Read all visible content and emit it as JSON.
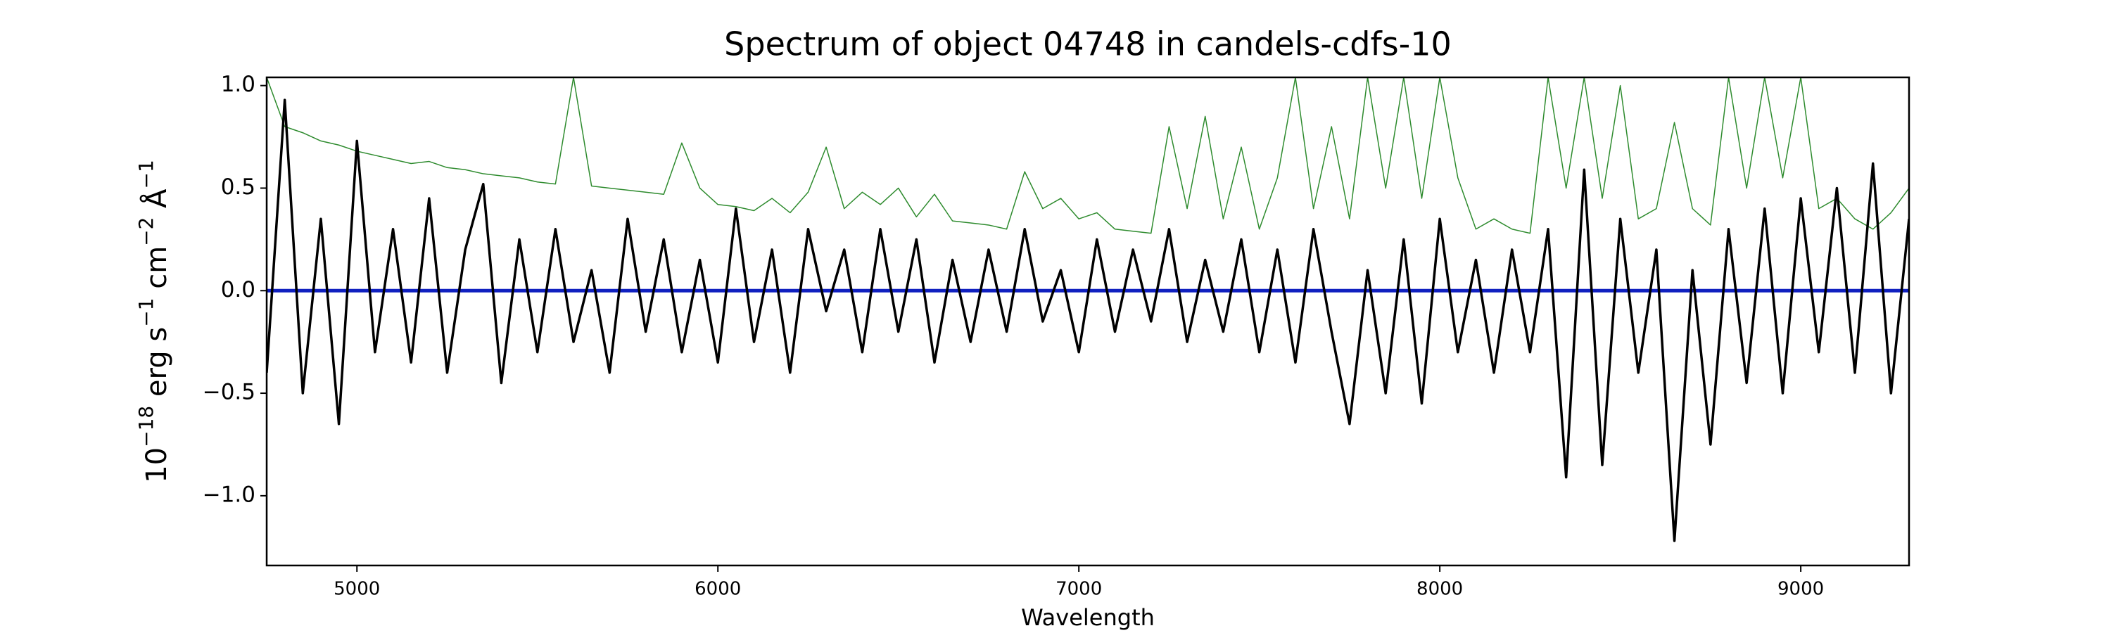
{
  "chart_data": {
    "type": "line",
    "title": "Spectrum of object 04748 in candels-cdfs-10",
    "xlabel": "Wavelength",
    "ylabel": [
      {
        "text": "10",
        "sup": "−18"
      },
      {
        "text": " erg s",
        "sup": "−1"
      },
      {
        "text": " cm",
        "sup": "−2"
      },
      {
        "text": " Å",
        "sup": "−1"
      }
    ],
    "xlim": [
      4750,
      9300
    ],
    "ylim": [
      -1.34,
      1.04
    ],
    "xticks": [
      5000,
      6000,
      7000,
      8000,
      9000
    ],
    "yticks": [
      {
        "value": -1.0,
        "label": "−1.0"
      },
      {
        "value": -0.5,
        "label": "−0.5"
      },
      {
        "value": 0.0,
        "label": "0.0"
      },
      {
        "value": 0.5,
        "label": "0.5"
      },
      {
        "value": 1.0,
        "label": "1.0"
      }
    ],
    "x": [
      4750,
      4800,
      4850,
      4900,
      4950,
      5000,
      5050,
      5100,
      5150,
      5200,
      5250,
      5300,
      5350,
      5400,
      5450,
      5500,
      5550,
      5600,
      5650,
      5700,
      5750,
      5800,
      5850,
      5900,
      5950,
      6000,
      6050,
      6100,
      6150,
      6200,
      6250,
      6300,
      6350,
      6400,
      6450,
      6500,
      6550,
      6600,
      6650,
      6700,
      6750,
      6800,
      6850,
      6900,
      6950,
      7000,
      7050,
      7100,
      7150,
      7200,
      7250,
      7300,
      7350,
      7400,
      7450,
      7500,
      7550,
      7600,
      7650,
      7700,
      7750,
      7800,
      7850,
      7900,
      7950,
      8000,
      8050,
      8100,
      8150,
      8200,
      8250,
      8300,
      8350,
      8400,
      8450,
      8500,
      8550,
      8600,
      8650,
      8700,
      8750,
      8800,
      8850,
      8900,
      8950,
      9000,
      9050,
      9100,
      9150,
      9200,
      9250,
      9300
    ],
    "series": [
      {
        "color": "#2e8b2e",
        "width": 1.5,
        "values": [
          1.04,
          0.8,
          0.77,
          0.73,
          0.71,
          0.68,
          0.66,
          0.64,
          0.62,
          0.63,
          0.6,
          0.59,
          0.57,
          0.56,
          0.55,
          0.53,
          0.52,
          1.04,
          0.51,
          0.5,
          0.49,
          0.48,
          0.47,
          0.72,
          0.5,
          0.42,
          0.41,
          0.39,
          0.45,
          0.38,
          0.48,
          0.7,
          0.4,
          0.48,
          0.42,
          0.5,
          0.36,
          0.47,
          0.34,
          0.33,
          0.32,
          0.3,
          0.58,
          0.4,
          0.45,
          0.35,
          0.38,
          0.3,
          0.29,
          0.28,
          0.8,
          0.4,
          0.85,
          0.35,
          0.7,
          0.3,
          0.55,
          1.04,
          0.4,
          0.8,
          0.35,
          1.04,
          0.5,
          1.04,
          0.45,
          1.04,
          0.55,
          0.3,
          0.35,
          0.3,
          0.28,
          1.04,
          0.5,
          1.04,
          0.45,
          1.0,
          0.35,
          0.4,
          0.82,
          0.4,
          0.32,
          1.04,
          0.5,
          1.04,
          0.55,
          1.04,
          0.4,
          0.45,
          0.35,
          0.3,
          0.38,
          0.5
        ]
      },
      {
        "color": "#1020c0",
        "width": 5,
        "x": [
          4750,
          9300
        ],
        "values": [
          0,
          0
        ]
      },
      {
        "color": "#000000",
        "width": 3.5,
        "values": [
          -0.4,
          0.93,
          -0.5,
          0.35,
          -0.65,
          0.73,
          -0.3,
          0.3,
          -0.35,
          0.45,
          -0.4,
          0.2,
          0.52,
          -0.45,
          0.25,
          -0.3,
          0.3,
          -0.25,
          0.1,
          -0.4,
          0.35,
          -0.2,
          0.25,
          -0.3,
          0.15,
          -0.35,
          0.4,
          -0.25,
          0.2,
          -0.4,
          0.3,
          -0.1,
          0.2,
          -0.3,
          0.3,
          -0.2,
          0.25,
          -0.35,
          0.15,
          -0.25,
          0.2,
          -0.2,
          0.3,
          -0.15,
          0.1,
          -0.3,
          0.25,
          -0.2,
          0.2,
          -0.15,
          0.3,
          -0.25,
          0.15,
          -0.2,
          0.25,
          -0.3,
          0.2,
          -0.35,
          0.3,
          -0.2,
          -0.65,
          0.1,
          -0.5,
          0.25,
          -0.55,
          0.35,
          -0.3,
          0.15,
          -0.4,
          0.2,
          -0.3,
          0.3,
          -0.91,
          0.59,
          -0.85,
          0.35,
          -0.4,
          0.2,
          -1.22,
          0.1,
          -0.75,
          0.3,
          -0.45,
          0.4,
          -0.5,
          0.45,
          -0.3,
          0.5,
          -0.4,
          0.62,
          -0.5,
          0.35
        ]
      }
    ]
  }
}
